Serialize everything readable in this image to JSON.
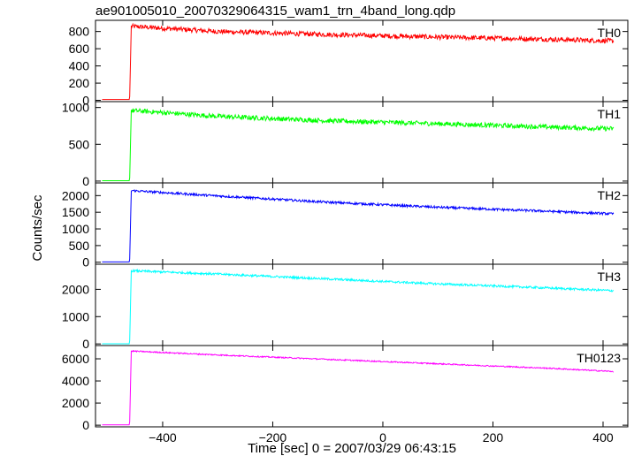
{
  "chart_data": {
    "type": "line",
    "title": "ae901005010_20070329064315_wam1_trn_4band_long.qdp",
    "xlabel": "Time [sec] 0 = 2007/03/29 06:43:15",
    "ylabel": "Counts/sec",
    "xlim": [
      -522,
      445
    ],
    "x_ticks": [
      -400,
      -200,
      0,
      200,
      400
    ],
    "x_tick_labels": [
      "−400",
      "−200",
      "0",
      "200",
      "400"
    ],
    "grid": false,
    "panels": [
      {
        "name": "TH0",
        "color": "#ff0000",
        "ylim": [
          -15,
          930
        ],
        "y_ticks": [
          0,
          200,
          400,
          600,
          800
        ],
        "pre_level": 10,
        "x": [
          -510,
          -460,
          -457,
          -300,
          -100,
          100,
          300,
          420
        ],
        "y": [
          10,
          10,
          860,
          800,
          765,
          735,
          710,
          690
        ],
        "noise": 28
      },
      {
        "name": "TH1",
        "color": "#00ff00",
        "ylim": [
          -25,
          1080
        ],
        "y_ticks": [
          0,
          500,
          1000
        ],
        "pre_level": 5,
        "x": [
          -510,
          -460,
          -457,
          -300,
          -100,
          100,
          300,
          420
        ],
        "y": [
          5,
          5,
          960,
          880,
          820,
          780,
          735,
          710
        ],
        "noise": 32
      },
      {
        "name": "TH2",
        "color": "#0000ff",
        "ylim": [
          -60,
          2380
        ],
        "y_ticks": [
          0,
          500,
          1000,
          1500,
          2000
        ],
        "pre_level": 10,
        "x": [
          -510,
          -460,
          -457,
          -300,
          -100,
          100,
          300,
          420
        ],
        "y": [
          10,
          10,
          2150,
          1990,
          1800,
          1650,
          1530,
          1450
        ],
        "noise": 35
      },
      {
        "name": "TH3",
        "color": "#00ffff",
        "ylim": [
          -60,
          2920
        ],
        "y_ticks": [
          0,
          1000,
          2000
        ],
        "pre_level": 5,
        "x": [
          -510,
          -460,
          -457,
          -300,
          -100,
          100,
          300,
          420
        ],
        "y": [
          5,
          5,
          2680,
          2560,
          2380,
          2200,
          2050,
          1950
        ],
        "noise": 40
      },
      {
        "name": "TH0123",
        "color": "#ff00ff",
        "ylim": [
          -150,
          7200
        ],
        "y_ticks": [
          0,
          2000,
          4000,
          6000
        ],
        "pre_level": 30,
        "x": [
          -510,
          -460,
          -457,
          -300,
          -100,
          100,
          300,
          420
        ],
        "y": [
          30,
          30,
          6700,
          6350,
          5950,
          5550,
          5150,
          4850
        ],
        "noise": 55
      }
    ]
  }
}
